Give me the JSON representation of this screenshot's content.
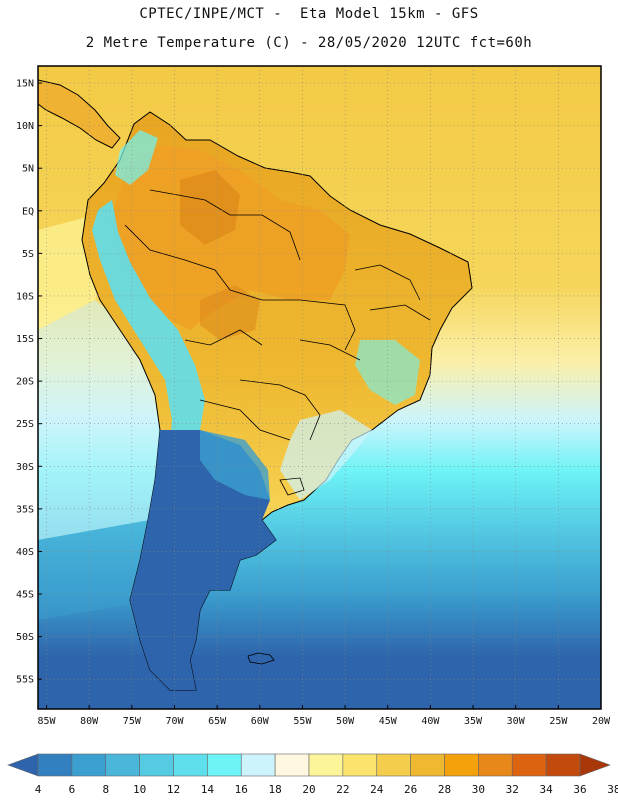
{
  "header": {
    "line1": "CPTEC/INPE/MCT -  Eta Model 15km - GFS",
    "line2": "2 Metre Temperature (C) - 28/05/2020 12UTC fct=60h"
  },
  "map": {
    "lat_labels": [
      "15N",
      "10N",
      "5N",
      "EQ",
      "5S",
      "10S",
      "15S",
      "20S",
      "25S",
      "30S",
      "35S",
      "40S",
      "45S",
      "50S",
      "55S"
    ],
    "lon_labels": [
      "85W",
      "80W",
      "75W",
      "70W",
      "65W",
      "60W",
      "55W",
      "50W",
      "45W",
      "40W",
      "35W",
      "30W",
      "25W",
      "20W"
    ],
    "lat_values": [
      15,
      10,
      5,
      0,
      -5,
      -10,
      -15,
      -20,
      -25,
      -30,
      -35,
      -40,
      -45,
      -50,
      -55
    ],
    "lon_values": [
      -85,
      -80,
      -75,
      -70,
      -65,
      -60,
      -55,
      -50,
      -45,
      -40,
      -35,
      -30,
      -25,
      -20
    ],
    "extent": {
      "lon_min": -86,
      "lon_max": -20,
      "lat_min": -58.5,
      "lat_max": 17
    },
    "grid": "dotted",
    "colors": {
      "ocean_tropical": "#f5d24a",
      "ocean_subtropical": "#fbf2ad",
      "ocean_cold": "#2f7fc3",
      "land_hot": "#e9a020",
      "land_very_hot": "#de8a1a",
      "andes": "#5ad8e8",
      "patagonia": "#2a5fa8",
      "outline": "#000000"
    }
  },
  "colorbar": {
    "labels": [
      "4",
      "6",
      "8",
      "10",
      "12",
      "14",
      "16",
      "18",
      "20",
      "22",
      "24",
      "26",
      "28",
      "30",
      "32",
      "34",
      "36",
      "38"
    ],
    "colors": [
      "#2e64ab",
      "#3380c0",
      "#3b9fcf",
      "#4ab7da",
      "#54cae3",
      "#5fdeec",
      "#6ef3f6",
      "#cdf4fc",
      "#fff7e0",
      "#fdf59a",
      "#fbe36e",
      "#f5cd4c",
      "#eeb830",
      "#f4a20c",
      "#e8881a",
      "#dc6410",
      "#c24a0c",
      "#a8380a"
    ]
  }
}
